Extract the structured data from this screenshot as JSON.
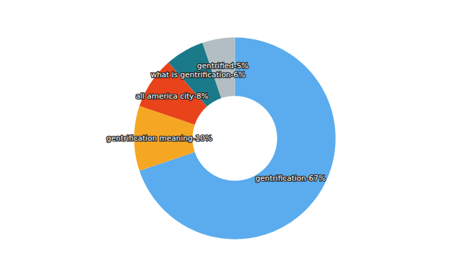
{
  "chart_data": {
    "type": "donut",
    "categories": [
      "gentrification",
      "gentrification meaning",
      "all america city",
      "what is gentrification",
      "gentrified"
    ],
    "values": [
      67,
      10,
      8,
      6,
      5
    ],
    "value_labels": [
      "gentrification-67%",
      "gentrification meaning-10%",
      "all america city-8%",
      "what is gentrification-6%",
      "gentrified-5%"
    ],
    "colors": [
      "#5AACEE",
      "#F5A623",
      "#E8431A",
      "#1A7A8A",
      "#B2BEC3"
    ],
    "data_labels": true
  }
}
